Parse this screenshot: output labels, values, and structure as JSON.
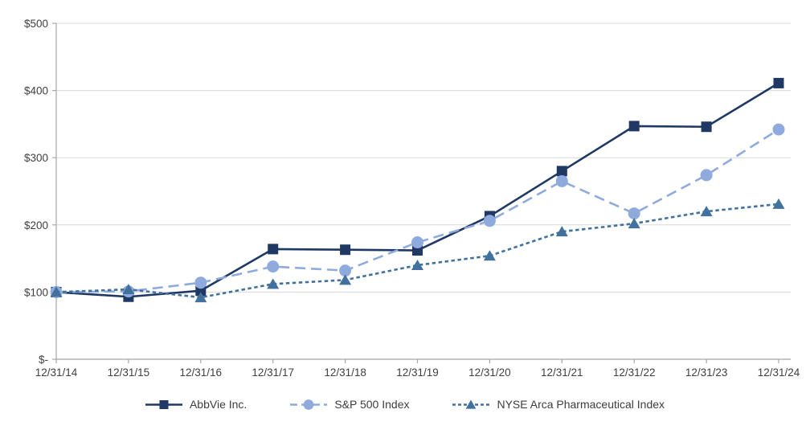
{
  "chart_data": {
    "type": "line",
    "title": "",
    "categories": [
      "12/31/14",
      "12/31/15",
      "12/31/16",
      "12/31/17",
      "12/31/18",
      "12/31/19",
      "12/31/20",
      "12/31/21",
      "12/31/22",
      "12/31/23",
      "12/31/24"
    ],
    "series": [
      {
        "name": "AbbVie Inc.",
        "marker": "square",
        "line_style": "solid",
        "color": "#1F3864",
        "values": [
          100,
          93,
          102,
          164,
          163,
          162,
          213,
          280,
          347,
          346,
          411
        ]
      },
      {
        "name": "S&P 500 Index",
        "marker": "circle",
        "line_style": "long-dash",
        "color": "#8FAADC",
        "values": [
          100,
          101,
          114,
          138,
          132,
          174,
          206,
          265,
          217,
          274,
          342
        ]
      },
      {
        "name": "NYSE Arca Pharmaceutical Index",
        "marker": "triangle",
        "line_style": "short-dash",
        "color": "#41719C",
        "values": [
          100,
          104,
          92,
          112,
          118,
          140,
          154,
          190,
          202,
          220,
          231
        ]
      }
    ],
    "y_axis": {
      "ticks": [
        "$500",
        "$400",
        "$300",
        "$200",
        "$100",
        "$-"
      ],
      "tick_values": [
        500,
        400,
        300,
        200,
        100,
        0
      ],
      "range": [
        0,
        500
      ]
    },
    "grid": "horizontal",
    "legend_position": "bottom",
    "colors": {
      "gridline": "#D9D9D9",
      "axis": "#A6A6A6",
      "tick_label": "#404040",
      "legend_text": "#3d3d3d",
      "background": "#FFFFFF"
    }
  }
}
